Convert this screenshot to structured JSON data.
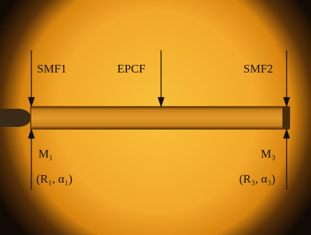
{
  "labels": {
    "smf1": "SMF1",
    "epcf": "EPCF",
    "smf2": "SMF2",
    "m1": "M₁",
    "r1": "(R₁, α₁)",
    "m3": "M₃",
    "r3": "(R₃, α₃)"
  }
}
